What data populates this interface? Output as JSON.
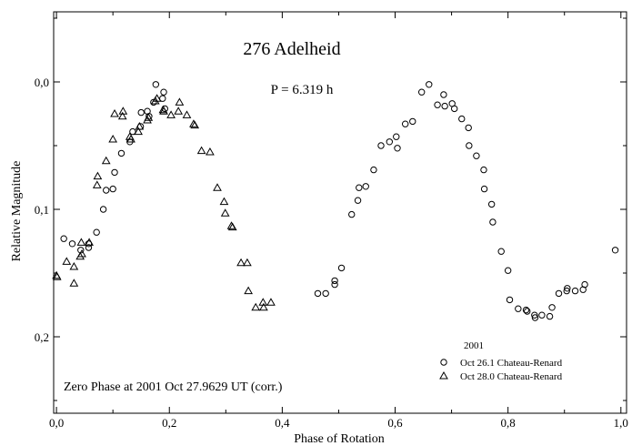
{
  "chart_data": {
    "type": "scatter",
    "title": "276 Adelheid",
    "subtitle": "P = 6.319 h",
    "xlabel": "Phase of Rotation",
    "ylabel": "Relative Magnitude",
    "xlim": [
      -0.005,
      1.01
    ],
    "ylim": [
      0.26,
      -0.055
    ],
    "y_inverted": true,
    "grid": false,
    "legend_position": "bottom-right",
    "legend_title": "2001",
    "annotation": "Zero Phase at 2001 Oct 27.9629 UT (corr.)",
    "x_ticks": [
      {
        "value": 0.0,
        "label": "0,0"
      },
      {
        "value": 0.2,
        "label": "0,2"
      },
      {
        "value": 0.4,
        "label": "0,4"
      },
      {
        "value": 0.6,
        "label": "0,6"
      },
      {
        "value": 0.8,
        "label": "0,8"
      },
      {
        "value": 1.0,
        "label": "1,0"
      }
    ],
    "y_ticks": [
      {
        "value": 0.0,
        "label": "0,0"
      },
      {
        "value": 0.1,
        "label": "0,1"
      },
      {
        "value": 0.2,
        "label": "0,2"
      }
    ],
    "series": [
      {
        "name": "Oct 26.1 Chateau-Renard",
        "marker": "circle",
        "points": [
          [
            0.013,
            0.123
          ],
          [
            0.028,
            0.127
          ],
          [
            0.043,
            0.132
          ],
          [
            0.057,
            0.127
          ],
          [
            0.057,
            0.13
          ],
          [
            0.071,
            0.118
          ],
          [
            0.083,
            0.1
          ],
          [
            0.088,
            0.085
          ],
          [
            0.1,
            0.084
          ],
          [
            0.103,
            0.071
          ],
          [
            0.115,
            0.056
          ],
          [
            0.13,
            0.047
          ],
          [
            0.135,
            0.039
          ],
          [
            0.149,
            0.035
          ],
          [
            0.15,
            0.024
          ],
          [
            0.161,
            0.023
          ],
          [
            0.164,
            0.027
          ],
          [
            0.172,
            0.016
          ],
          [
            0.176,
            0.002
          ],
          [
            0.188,
            0.013
          ],
          [
            0.19,
            0.008
          ],
          [
            0.192,
            0.021
          ],
          [
            0.463,
            0.166
          ],
          [
            0.477,
            0.166
          ],
          [
            0.493,
            0.159
          ],
          [
            0.493,
            0.156
          ],
          [
            0.505,
            0.146
          ],
          [
            0.523,
            0.104
          ],
          [
            0.534,
            0.093
          ],
          [
            0.536,
            0.083
          ],
          [
            0.548,
            0.082
          ],
          [
            0.562,
            0.069
          ],
          [
            0.575,
            0.05
          ],
          [
            0.59,
            0.047
          ],
          [
            0.602,
            0.043
          ],
          [
            0.604,
            0.052
          ],
          [
            0.618,
            0.033
          ],
          [
            0.631,
            0.031
          ],
          [
            0.647,
            0.008
          ],
          [
            0.66,
            0.002
          ],
          [
            0.675,
            0.018
          ],
          [
            0.686,
            0.01
          ],
          [
            0.688,
            0.019
          ],
          [
            0.701,
            0.017
          ],
          [
            0.705,
            0.021
          ],
          [
            0.718,
            0.029
          ],
          [
            0.73,
            0.036
          ],
          [
            0.731,
            0.05
          ],
          [
            0.744,
            0.058
          ],
          [
            0.757,
            0.069
          ],
          [
            0.758,
            0.084
          ],
          [
            0.771,
            0.096
          ],
          [
            0.773,
            0.11
          ],
          [
            0.788,
            0.133
          ],
          [
            0.8,
            0.148
          ],
          [
            0.803,
            0.171
          ],
          [
            0.818,
            0.178
          ],
          [
            0.832,
            0.179
          ],
          [
            0.834,
            0.18
          ],
          [
            0.847,
            0.183
          ],
          [
            0.848,
            0.185
          ],
          [
            0.86,
            0.183
          ],
          [
            0.874,
            0.184
          ],
          [
            0.878,
            0.177
          ],
          [
            0.89,
            0.166
          ],
          [
            0.904,
            0.164
          ],
          [
            0.905,
            0.162
          ],
          [
            0.919,
            0.164
          ],
          [
            0.933,
            0.163
          ],
          [
            0.936,
            0.159
          ],
          [
            0.99,
            0.132
          ]
        ]
      },
      {
        "name": "Oct 28.0 Chateau-Renard",
        "marker": "triangle",
        "points": [
          [
            0.0,
            0.152
          ],
          [
            0.001,
            0.153
          ],
          [
            0.018,
            0.141
          ],
          [
            0.031,
            0.158
          ],
          [
            0.031,
            0.145
          ],
          [
            0.042,
            0.137
          ],
          [
            0.044,
            0.126
          ],
          [
            0.045,
            0.135
          ],
          [
            0.058,
            0.126
          ],
          [
            0.072,
            0.081
          ],
          [
            0.073,
            0.074
          ],
          [
            0.088,
            0.062
          ],
          [
            0.1,
            0.045
          ],
          [
            0.103,
            0.025
          ],
          [
            0.117,
            0.027
          ],
          [
            0.118,
            0.023
          ],
          [
            0.13,
            0.043
          ],
          [
            0.132,
            0.045
          ],
          [
            0.145,
            0.039
          ],
          [
            0.147,
            0.035
          ],
          [
            0.161,
            0.03
          ],
          [
            0.163,
            0.028
          ],
          [
            0.175,
            0.015
          ],
          [
            0.178,
            0.013
          ],
          [
            0.189,
            0.022
          ],
          [
            0.19,
            0.023
          ],
          [
            0.203,
            0.026
          ],
          [
            0.216,
            0.023
          ],
          [
            0.218,
            0.016
          ],
          [
            0.231,
            0.026
          ],
          [
            0.243,
            0.033
          ],
          [
            0.245,
            0.034
          ],
          [
            0.257,
            0.054
          ],
          [
            0.272,
            0.055
          ],
          [
            0.285,
            0.083
          ],
          [
            0.297,
            0.094
          ],
          [
            0.299,
            0.103
          ],
          [
            0.31,
            0.113
          ],
          [
            0.312,
            0.114
          ],
          [
            0.327,
            0.142
          ],
          [
            0.338,
            0.142
          ],
          [
            0.34,
            0.164
          ],
          [
            0.353,
            0.177
          ],
          [
            0.366,
            0.173
          ],
          [
            0.367,
            0.177
          ],
          [
            0.38,
            0.173
          ]
        ]
      }
    ]
  }
}
